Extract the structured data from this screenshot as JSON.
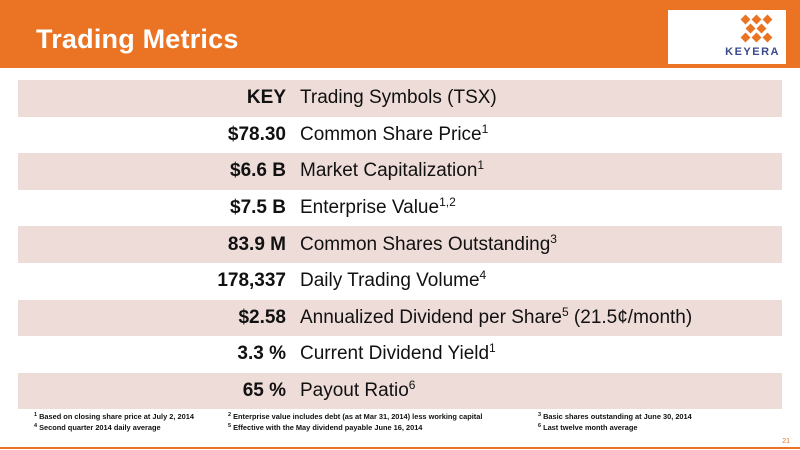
{
  "header": {
    "title": "Trading Metrics",
    "brand_color": "#ea7424"
  },
  "logo": {
    "wordmark": "KEYERA",
    "icon": "keyera-logo-icon"
  },
  "rows": [
    {
      "value": "KEY",
      "label": "Trading Symbols (TSX)",
      "note": ""
    },
    {
      "value": "$78.30",
      "label": "Common Share Price",
      "note": "1"
    },
    {
      "value": "$6.6 B",
      "label": "Market Capitalization",
      "note": "1"
    },
    {
      "value": "$7.5 B",
      "label": "Enterprise Value",
      "note": "1,2"
    },
    {
      "value": "83.9 M",
      "label": "Common Shares Outstanding",
      "note": "3"
    },
    {
      "value": "178,337",
      "label": "Daily Trading Volume",
      "note": "4"
    },
    {
      "value": "$2.58",
      "label": "Annualized Dividend per Share",
      "note": "5",
      "suffix": " (21.5¢/month)"
    },
    {
      "value": "3.3 %",
      "label": "Current Dividend Yield",
      "note": "1"
    },
    {
      "value": "65 %",
      "label": "Payout Ratio",
      "note": "6"
    }
  ],
  "footnotes": [
    {
      "num": "1",
      "text": "Based on closing share price at July 2, 2014"
    },
    {
      "num": "2",
      "text": "Enterprise value includes debt (as at Mar 31, 2014) less working capital"
    },
    {
      "num": "3",
      "text": "Basic shares outstanding at June 30, 2014"
    },
    {
      "num": "4",
      "text": "Second quarter 2014 daily average"
    },
    {
      "num": "5",
      "text": "Effective with the May dividend payable June 16, 2014"
    },
    {
      "num": "6",
      "text": "Last twelve month average"
    }
  ],
  "page_number": "21"
}
